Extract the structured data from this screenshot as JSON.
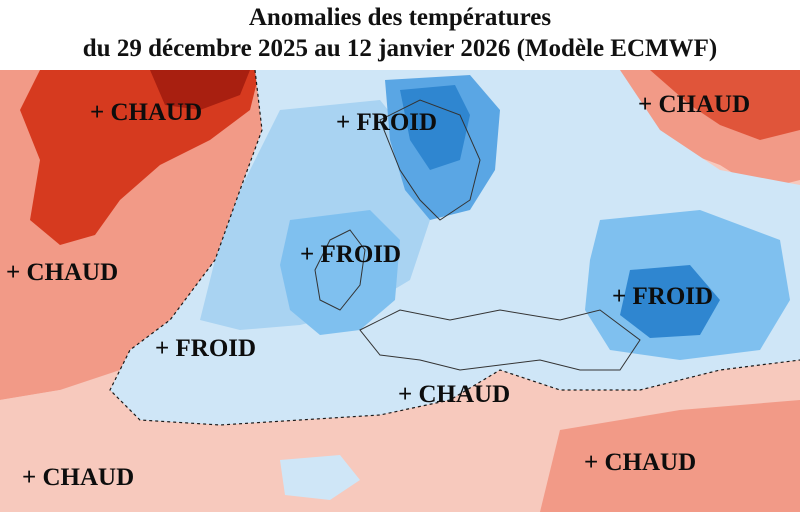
{
  "header": {
    "title": "Anomalies des températures",
    "subtitle": "du 29 décembre 2025 au 12 janvier 2026 (Modèle ECMWF)"
  },
  "legend_colors": {
    "warm_strong": "#d63a1f",
    "warm": "#f29a87",
    "warm_light": "#f7c9bd",
    "neutral": "#ffffff",
    "cold_light": "#cfe6f7",
    "cold": "#7fc0ef",
    "cold_strong": "#2f86d0"
  },
  "map": {
    "labels": [
      {
        "id": "nw-greenland",
        "text": "+ CHAUD"
      },
      {
        "id": "scandinavia",
        "text": "+ FROID"
      },
      {
        "id": "ne-siberia",
        "text": "+ CHAUD"
      },
      {
        "id": "west-atlantic",
        "text": "+ CHAUD"
      },
      {
        "id": "british-isles",
        "text": "+ FROID"
      },
      {
        "id": "black-sea",
        "text": "+ FROID"
      },
      {
        "id": "mid-atlantic",
        "text": "+ FROID"
      },
      {
        "id": "mediterranean",
        "text": "+ CHAUD"
      },
      {
        "id": "sw-atlantic",
        "text": "+ CHAUD"
      },
      {
        "id": "middle-east",
        "text": "+ CHAUD"
      }
    ]
  }
}
